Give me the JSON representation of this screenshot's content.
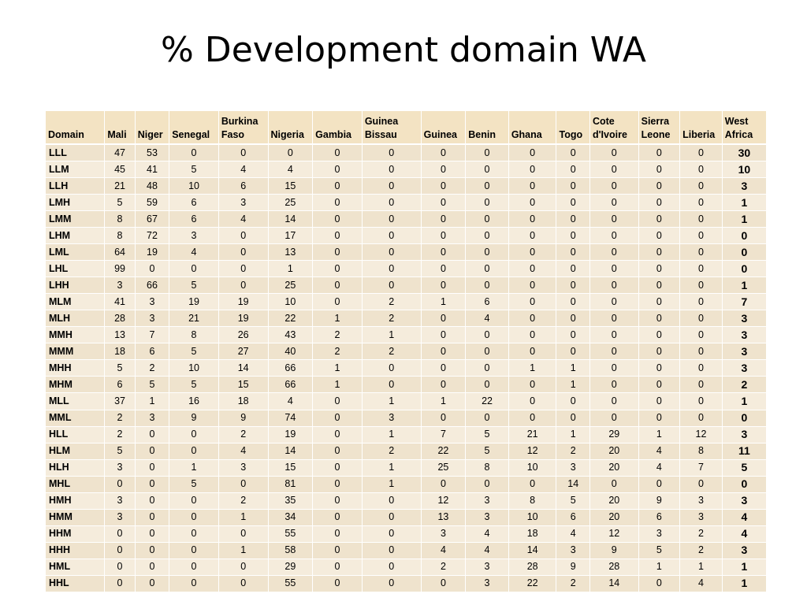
{
  "slide": {
    "title": "% Development domain WA"
  },
  "table": {
    "headers": [
      [
        "Domain"
      ],
      [
        "Mali"
      ],
      [
        "Niger"
      ],
      [
        "Senegal"
      ],
      [
        "Burkina",
        "Faso"
      ],
      [
        "Nigeria"
      ],
      [
        "Gambia"
      ],
      [
        "Guinea",
        "Bissau"
      ],
      [
        "Guinea"
      ],
      [
        "Benin"
      ],
      [
        "Ghana"
      ],
      [
        "Togo"
      ],
      [
        "Cote",
        "d'Ivoire"
      ],
      [
        "Sierra",
        "Leone"
      ],
      [
        "Liberia"
      ],
      [
        "West",
        "Africa"
      ]
    ],
    "rows": [
      [
        "LLL",
        "47",
        "53",
        "0",
        "0",
        "0",
        "0",
        "0",
        "0",
        "0",
        "0",
        "0",
        "0",
        "0",
        "0",
        "30"
      ],
      [
        "LLM",
        "45",
        "41",
        "5",
        "4",
        "4",
        "0",
        "0",
        "0",
        "0",
        "0",
        "0",
        "0",
        "0",
        "0",
        "10"
      ],
      [
        "LLH",
        "21",
        "48",
        "10",
        "6",
        "15",
        "0",
        "0",
        "0",
        "0",
        "0",
        "0",
        "0",
        "0",
        "0",
        "3"
      ],
      [
        "LMH",
        "5",
        "59",
        "6",
        "3",
        "25",
        "0",
        "0",
        "0",
        "0",
        "0",
        "0",
        "0",
        "0",
        "0",
        "1"
      ],
      [
        "LMM",
        "8",
        "67",
        "6",
        "4",
        "14",
        "0",
        "0",
        "0",
        "0",
        "0",
        "0",
        "0",
        "0",
        "0",
        "1"
      ],
      [
        "LHM",
        "8",
        "72",
        "3",
        "0",
        "17",
        "0",
        "0",
        "0",
        "0",
        "0",
        "0",
        "0",
        "0",
        "0",
        "0"
      ],
      [
        "LML",
        "64",
        "19",
        "4",
        "0",
        "13",
        "0",
        "0",
        "0",
        "0",
        "0",
        "0",
        "0",
        "0",
        "0",
        "0"
      ],
      [
        "LHL",
        "99",
        "0",
        "0",
        "0",
        "1",
        "0",
        "0",
        "0",
        "0",
        "0",
        "0",
        "0",
        "0",
        "0",
        "0"
      ],
      [
        "LHH",
        "3",
        "66",
        "5",
        "0",
        "25",
        "0",
        "0",
        "0",
        "0",
        "0",
        "0",
        "0",
        "0",
        "0",
        "1"
      ],
      [
        "MLM",
        "41",
        "3",
        "19",
        "19",
        "10",
        "0",
        "2",
        "1",
        "6",
        "0",
        "0",
        "0",
        "0",
        "0",
        "7"
      ],
      [
        "MLH",
        "28",
        "3",
        "21",
        "19",
        "22",
        "1",
        "2",
        "0",
        "4",
        "0",
        "0",
        "0",
        "0",
        "0",
        "3"
      ],
      [
        "MMH",
        "13",
        "7",
        "8",
        "26",
        "43",
        "2",
        "1",
        "0",
        "0",
        "0",
        "0",
        "0",
        "0",
        "0",
        "3"
      ],
      [
        "MMM",
        "18",
        "6",
        "5",
        "27",
        "40",
        "2",
        "2",
        "0",
        "0",
        "0",
        "0",
        "0",
        "0",
        "0",
        "3"
      ],
      [
        "MHH",
        "5",
        "2",
        "10",
        "14",
        "66",
        "1",
        "0",
        "0",
        "0",
        "1",
        "1",
        "0",
        "0",
        "0",
        "3"
      ],
      [
        "MHM",
        "6",
        "5",
        "5",
        "15",
        "66",
        "1",
        "0",
        "0",
        "0",
        "0",
        "1",
        "0",
        "0",
        "0",
        "2"
      ],
      [
        "MLL",
        "37",
        "1",
        "16",
        "18",
        "4",
        "0",
        "1",
        "1",
        "22",
        "0",
        "0",
        "0",
        "0",
        "0",
        "1"
      ],
      [
        "MML",
        "2",
        "3",
        "9",
        "9",
        "74",
        "0",
        "3",
        "0",
        "0",
        "0",
        "0",
        "0",
        "0",
        "0",
        "0"
      ],
      [
        "HLL",
        "2",
        "0",
        "0",
        "2",
        "19",
        "0",
        "1",
        "7",
        "5",
        "21",
        "1",
        "29",
        "1",
        "12",
        "3"
      ],
      [
        "HLM",
        "5",
        "0",
        "0",
        "4",
        "14",
        "0",
        "2",
        "22",
        "5",
        "12",
        "2",
        "20",
        "4",
        "8",
        "11"
      ],
      [
        "HLH",
        "3",
        "0",
        "1",
        "3",
        "15",
        "0",
        "1",
        "25",
        "8",
        "10",
        "3",
        "20",
        "4",
        "7",
        "5"
      ],
      [
        "MHL",
        "0",
        "0",
        "5",
        "0",
        "81",
        "0",
        "1",
        "0",
        "0",
        "0",
        "14",
        "0",
        "0",
        "0",
        "0"
      ],
      [
        "HMH",
        "3",
        "0",
        "0",
        "2",
        "35",
        "0",
        "0",
        "12",
        "3",
        "8",
        "5",
        "20",
        "9",
        "3",
        "3"
      ],
      [
        "HMM",
        "3",
        "0",
        "0",
        "1",
        "34",
        "0",
        "0",
        "13",
        "3",
        "10",
        "6",
        "20",
        "6",
        "3",
        "4"
      ],
      [
        "HHM",
        "0",
        "0",
        "0",
        "0",
        "55",
        "0",
        "0",
        "3",
        "4",
        "18",
        "4",
        "12",
        "3",
        "2",
        "4"
      ],
      [
        "HHH",
        "0",
        "0",
        "0",
        "1",
        "58",
        "0",
        "0",
        "4",
        "4",
        "14",
        "3",
        "9",
        "5",
        "2",
        "3"
      ],
      [
        "HML",
        "0",
        "0",
        "0",
        "0",
        "29",
        "0",
        "0",
        "2",
        "3",
        "28",
        "9",
        "28",
        "1",
        "1",
        "1"
      ],
      [
        "HHL",
        "0",
        "0",
        "0",
        "0",
        "55",
        "0",
        "0",
        "0",
        "3",
        "22",
        "2",
        "14",
        "0",
        "4",
        "1"
      ]
    ]
  },
  "colors": {
    "header_bg": "#f3e3c3",
    "row_odd_bg": "#efe3cd",
    "row_even_bg": "#f5ecdc",
    "cell_border": "#ffffff"
  }
}
